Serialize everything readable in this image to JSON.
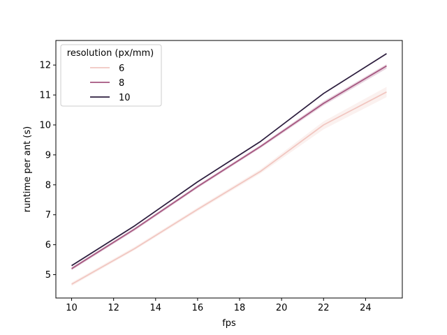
{
  "chart_data": {
    "type": "line",
    "xlabel": "fps",
    "ylabel": "runtime per ant (s)",
    "xlim": [
      9.25,
      25.75
    ],
    "ylim": [
      4.22,
      12.82
    ],
    "x_ticks": [
      10,
      12,
      14,
      16,
      18,
      20,
      22,
      24
    ],
    "y_ticks": [
      5,
      6,
      7,
      8,
      9,
      10,
      11,
      12
    ],
    "grid": false,
    "legend": {
      "title": "resolution (px/mm)",
      "placement": "top-left"
    },
    "x": [
      10,
      13,
      16,
      19,
      22,
      25
    ],
    "series": [
      {
        "name": "6",
        "color": "#f1c6c0",
        "values": [
          4.68,
          5.87,
          7.18,
          8.45,
          10.0,
          11.1
        ],
        "ci_low": [
          4.62,
          5.82,
          7.12,
          8.38,
          9.85,
          10.93
        ],
        "ci_high": [
          4.74,
          5.93,
          7.24,
          8.52,
          10.12,
          11.27
        ]
      },
      {
        "name": "8",
        "color": "#a5557f",
        "values": [
          5.2,
          6.52,
          7.94,
          9.28,
          10.72,
          11.97
        ],
        "ci_low": [
          5.15,
          6.47,
          7.89,
          9.23,
          10.65,
          11.88
        ],
        "ci_high": [
          5.25,
          6.57,
          7.99,
          9.33,
          10.79,
          12.03
        ]
      },
      {
        "name": "10",
        "color": "#2d1e3e",
        "values": [
          5.3,
          6.63,
          8.1,
          9.45,
          11.05,
          12.38
        ],
        "ci_low": [
          5.28,
          6.61,
          8.08,
          9.43,
          11.03,
          12.36
        ],
        "ci_high": [
          5.32,
          6.65,
          8.12,
          9.47,
          11.07,
          12.4
        ]
      }
    ]
  }
}
